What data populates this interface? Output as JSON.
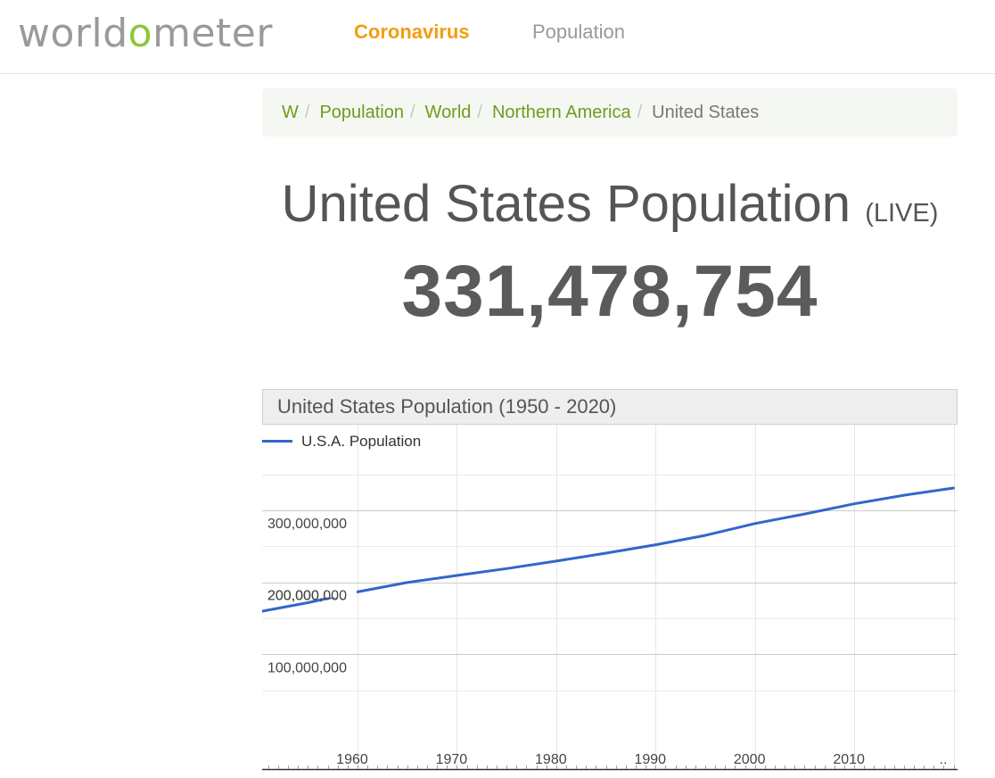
{
  "header": {
    "logo_text_before": "world",
    "logo_text_o": "o",
    "logo_text_after": "meter",
    "nav": [
      {
        "label": "Coronavirus"
      },
      {
        "label": "Population"
      }
    ]
  },
  "breadcrumb": {
    "items": [
      "W",
      "Population",
      "World",
      "Northern America"
    ],
    "separator": "/",
    "current": "United States"
  },
  "title": {
    "text": "United States Population",
    "badge": "(LIVE)"
  },
  "counter": "331,478,754",
  "chart_panel": {
    "title": "United States Population (1950 - 2020)"
  },
  "colors": {
    "accent_green": "#8dc63f",
    "link_green": "#6c9d1f",
    "nav_orange": "#f39c12",
    "line_blue": "#3366cc"
  },
  "chart_data": {
    "type": "line",
    "title": "United States Population (1950 - 2020)",
    "legend": "top-left",
    "grid": true,
    "x": [
      1950,
      1955,
      1960,
      1965,
      1970,
      1975,
      1980,
      1985,
      1990,
      1995,
      2000,
      2005,
      2010,
      2015,
      2020
    ],
    "series": [
      {
        "name": "U.S.A. Population",
        "color": "#3366cc",
        "values": [
          158800000,
          171700000,
          186700000,
          199700000,
          209500000,
          219000000,
          229500000,
          240500000,
          252100000,
          265200000,
          281700000,
          294900000,
          309000000,
          321000000,
          331000000
        ]
      }
    ],
    "xlim": [
      1950.4,
      2020.4
    ],
    "ylim": [
      0,
      355000000
    ],
    "xticks": [
      1960,
      1970,
      1980,
      1990,
      2000,
      2010
    ],
    "x_end_label": "..",
    "yticks": [
      100000000,
      200000000,
      300000000
    ],
    "ytick_labels": [
      "100,000,000",
      "200,000,000",
      "300,000,000"
    ]
  }
}
